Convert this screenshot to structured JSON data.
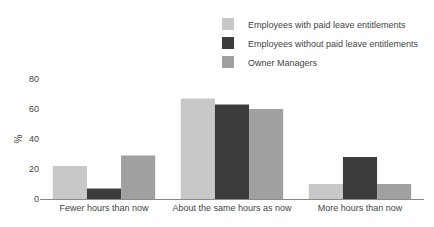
{
  "chart_data": {
    "type": "bar",
    "categories": [
      "Fewer hours than now",
      "About the same hours as now",
      "More hours than now"
    ],
    "series": [
      {
        "name": "Employees with paid leave entitlements",
        "color": "#c8c8c8",
        "values": [
          22,
          67,
          10
        ]
      },
      {
        "name": "Employees without paid leave entitlements",
        "color": "#3c3c3c",
        "values": [
          7,
          63,
          28
        ]
      },
      {
        "name": "Owner Managers",
        "color": "#a0a0a0",
        "values": [
          29,
          60,
          10
        ]
      }
    ],
    "ylabel": "%",
    "ylim": [
      0,
      80
    ],
    "yticks": [
      0,
      20,
      40,
      60,
      80
    ],
    "grid": false,
    "legend": "upper right"
  }
}
